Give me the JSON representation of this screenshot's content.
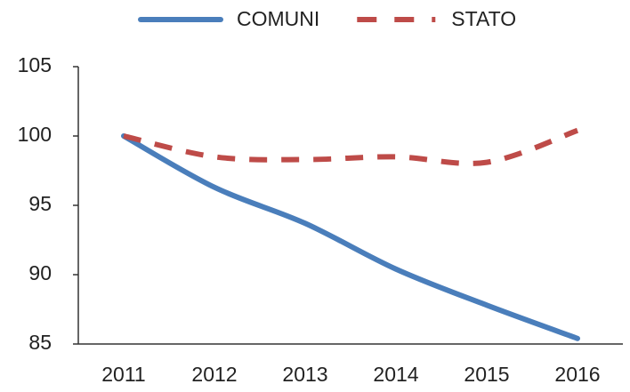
{
  "chart_data": {
    "type": "line",
    "categories": [
      "2011",
      "2012",
      "2013",
      "2014",
      "2015",
      "2016"
    ],
    "series": [
      {
        "name": "COMUNI",
        "color": "#4a7ebb",
        "dash": "solid",
        "values": [
          100,
          96.3,
          93.7,
          90.4,
          87.8,
          85.4
        ]
      },
      {
        "name": "STATO",
        "color": "#be4b48",
        "dash": "dashed",
        "values": [
          100,
          98.5,
          98.3,
          98.5,
          98.1,
          100.4
        ]
      }
    ],
    "ylim": [
      85,
      105
    ],
    "yticks": [
      85,
      90,
      95,
      100,
      105
    ],
    "grid": false,
    "legend": "top"
  }
}
